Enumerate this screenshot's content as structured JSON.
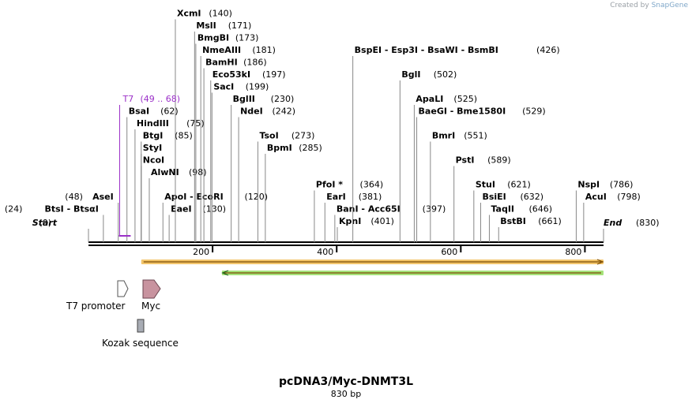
{
  "credit": {
    "prefix": "Created by",
    "brand": "SnapGene"
  },
  "title": "pcDNA3/Myc-DNMT3L",
  "length_label": "830 bp",
  "sequence": {
    "length": 830,
    "ticks": [
      200,
      400,
      600,
      800
    ]
  },
  "start_label": "Start",
  "start_pos": "(0)",
  "end_label": "End",
  "end_pos": "(830)",
  "enzymes": [
    {
      "name": "BtsI - BtsαI",
      "pos": 24,
      "pos_label": "(24)",
      "row": 1,
      "side": "right"
    },
    {
      "name": "AseI",
      "pos": 48,
      "pos_label": "(48)",
      "row": 2,
      "side": "right"
    },
    {
      "name": "BsaI",
      "pos": 62,
      "pos_label": "(62)",
      "row": 9
    },
    {
      "name": "HindIII",
      "pos": 75,
      "pos_label": "(75)",
      "row": 8
    },
    {
      "name": "BtgI",
      "pos": 85,
      "pos_label": "(85)",
      "row": 7
    },
    {
      "name": "StyI",
      "pos": 85,
      "pos_label": "",
      "row": 6
    },
    {
      "name": "NcoI",
      "pos": 85,
      "pos_label": "",
      "row": 5
    },
    {
      "name": "AlwNI",
      "pos": 98,
      "pos_label": "(98)",
      "row": 4
    },
    {
      "name": "ApoI - EcoRI",
      "pos": 120,
      "pos_label": "(120)",
      "row": 2
    },
    {
      "name": "EaeI",
      "pos": 130,
      "pos_label": "(130)",
      "row": 1
    },
    {
      "name": "XcmI",
      "pos": 140,
      "pos_label": "(140)",
      "row": 17
    },
    {
      "name": "MslI",
      "pos": 171,
      "pos_label": "(171)",
      "row": 16
    },
    {
      "name": "BmgBI",
      "pos": 173,
      "pos_label": "(173)",
      "row": 15
    },
    {
      "name": "NmeAIII",
      "pos": 181,
      "pos_label": "(181)",
      "row": 14
    },
    {
      "name": "BamHI",
      "pos": 186,
      "pos_label": "(186)",
      "row": 13
    },
    {
      "name": "Eco53kI",
      "pos": 197,
      "pos_label": "(197)",
      "row": 12
    },
    {
      "name": "SacI",
      "pos": 199,
      "pos_label": "(199)",
      "row": 11
    },
    {
      "name": "BglII",
      "pos": 230,
      "pos_label": "(230)",
      "row": 10
    },
    {
      "name": "NdeI",
      "pos": 242,
      "pos_label": "(242)",
      "row": 9
    },
    {
      "name": "TsoI",
      "pos": 273,
      "pos_label": "(273)",
      "row": 7
    },
    {
      "name": "BpmI",
      "pos": 285,
      "pos_label": "(285)",
      "row": 6
    },
    {
      "name": "PfoI *",
      "pos": 364,
      "pos_label": "(364)",
      "row": 3
    },
    {
      "name": "EarI",
      "pos": 381,
      "pos_label": "(381)",
      "row": 2
    },
    {
      "name": "BanI - Acc65I",
      "pos": 397,
      "pos_label": "(397)",
      "row": 1
    },
    {
      "name": "KpnI",
      "pos": 401,
      "pos_label": "(401)",
      "row": 0
    },
    {
      "name": "BspEI - Esp3I - BsaWI - BsmBI",
      "pos": 426,
      "pos_label": "(426)",
      "row": 14
    },
    {
      "name": "BglI",
      "pos": 502,
      "pos_label": "(502)",
      "row": 12
    },
    {
      "name": "ApaLI",
      "pos": 525,
      "pos_label": "(525)",
      "row": 10
    },
    {
      "name": "BaeGI - Bme1580I",
      "pos": 529,
      "pos_label": "(529)",
      "row": 9
    },
    {
      "name": "BmrI",
      "pos": 551,
      "pos_label": "(551)",
      "row": 7
    },
    {
      "name": "PstI",
      "pos": 589,
      "pos_label": "(589)",
      "row": 5
    },
    {
      "name": "StuI",
      "pos": 621,
      "pos_label": "(621)",
      "row": 3
    },
    {
      "name": "BsiEI",
      "pos": 632,
      "pos_label": "(632)",
      "row": 2
    },
    {
      "name": "TaqII",
      "pos": 646,
      "pos_label": "(646)",
      "row": 1
    },
    {
      "name": "BstBI",
      "pos": 661,
      "pos_label": "(661)",
      "row": 0
    },
    {
      "name": "NspI",
      "pos": 786,
      "pos_label": "(786)",
      "row": 3
    },
    {
      "name": "AcuI",
      "pos": 798,
      "pos_label": "(798)",
      "row": 2
    }
  ],
  "primer": {
    "name": "T7",
    "range": "(49 .. 68)",
    "start": 49,
    "end": 68,
    "row": 10,
    "color": "#9b30c8"
  },
  "orfs": [
    {
      "start": 85,
      "end": 830,
      "direction": "forward",
      "color": "#f3c56b"
    },
    {
      "start": 215,
      "end": 830,
      "direction": "reverse",
      "color": "#a6e37a"
    }
  ],
  "legend": [
    {
      "label": "T7 promoter",
      "shape": "arrow-outline"
    },
    {
      "label": "Myc",
      "shape": "arrow-pink"
    },
    {
      "label": "Kozak sequence",
      "shape": "rect-gray"
    }
  ]
}
